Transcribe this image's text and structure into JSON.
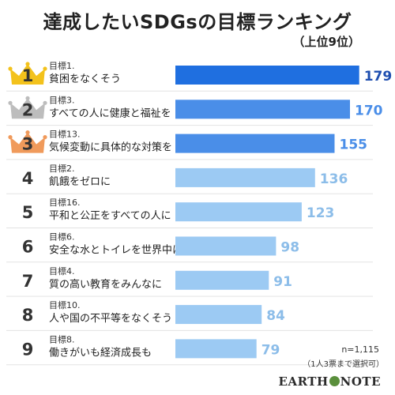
{
  "title": "達成したいSDGsの目標ランキング",
  "subtitle": "（上位9位）",
  "note_n": "n=1,115",
  "note_method": "（1人3票まで選択可）",
  "brand": {
    "left": "EARTH",
    "right": "NOTE"
  },
  "colors": {
    "top_bar": "#1f6fe0",
    "mid_bar": "#4a8ee8",
    "low_bar": "#9ccaf3",
    "top_value": "#1f4fb0",
    "mid_value": "#4a8ee8",
    "low_value": "#8cbde9",
    "gold": "#f3c21c",
    "silver": "#bdbdbd",
    "bronze": "#f09a5b"
  },
  "chart_data": {
    "type": "bar",
    "orientation": "horizontal",
    "categories": [
      "貧困をなくそう",
      "すべての人に健康と福祉を",
      "気候変動に具体的な対策を",
      "飢餓をゼロに",
      "平和と公正をすべての人に",
      "安全な水とトイレを世界中に",
      "質の高い教育をみんなに",
      "人や国の不平等をなくそう",
      "働きがいも経済成長も"
    ],
    "goal_labels": [
      "目標1.",
      "目標3.",
      "目標13.",
      "目標2.",
      "目標16.",
      "目標6.",
      "目標4.",
      "目標10.",
      "目標8."
    ],
    "ranks": [
      "1",
      "2",
      "3",
      "4",
      "5",
      "6",
      "7",
      "8",
      "9"
    ],
    "values": [
      179,
      170,
      155,
      136,
      123,
      98,
      91,
      84,
      79
    ],
    "xlim": [
      0,
      180
    ],
    "grid": false,
    "legend": "none"
  }
}
